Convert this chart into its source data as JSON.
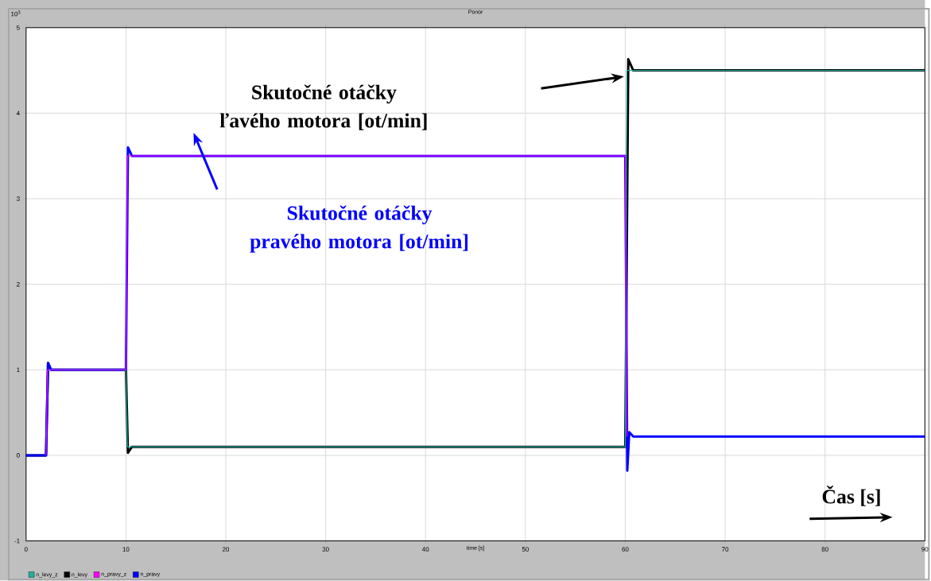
{
  "chart_data": {
    "type": "line",
    "title": "Ponor",
    "xlabel": "time [s]",
    "xlim": [
      0,
      90
    ],
    "xticks": [
      0,
      10,
      20,
      30,
      40,
      50,
      60,
      70,
      80,
      90
    ],
    "ylim": [
      -1,
      5
    ],
    "yticks": [
      -1,
      0,
      1,
      2,
      3,
      4,
      5
    ],
    "grid": true,
    "legend": "bottom",
    "marker": "none",
    "line_style": "solid",
    "series": [
      {
        "name": "n_levy_z",
        "color": "#20b0a0",
        "x": [
          2.15,
          10,
          10.15,
          60,
          60.15,
          90
        ],
        "values": [
          1,
          1,
          0.1,
          0.1,
          4.5,
          4.5
        ]
      },
      {
        "name": "n_levy",
        "color": "#000000",
        "x": [
          0,
          2,
          2.2,
          2.5,
          10,
          10.2,
          10.6,
          60,
          60.3,
          60.8,
          90
        ],
        "values": [
          0,
          0,
          1.08,
          1,
          1,
          0.03,
          0.1,
          0.1,
          4.63,
          4.5,
          4.5
        ]
      },
      {
        "name": "n_pravy_z",
        "color": "#ff00ff",
        "x": [
          2,
          2.15,
          10,
          10.15,
          60,
          60.15
        ],
        "values": [
          0,
          1,
          1,
          3.5,
          3.5,
          0.22
        ]
      },
      {
        "name": "n_pravy",
        "color": "#0000ff",
        "x": [
          0,
          2,
          2.2,
          2.5,
          10,
          10.2,
          10.6,
          60,
          60.2,
          60.4,
          60.8,
          90
        ],
        "values": [
          0,
          0,
          1.08,
          1,
          1,
          3.6,
          3.5,
          3.5,
          -0.18,
          0.27,
          0.22,
          0.22
        ]
      }
    ],
    "annotations": [
      "Skutočné otáčky ľavého motora [ot/min]",
      "Skutočné otáčky pravého motora [ot/min]",
      "Čas [s]",
      "10$^{3}$"
    ]
  }
}
